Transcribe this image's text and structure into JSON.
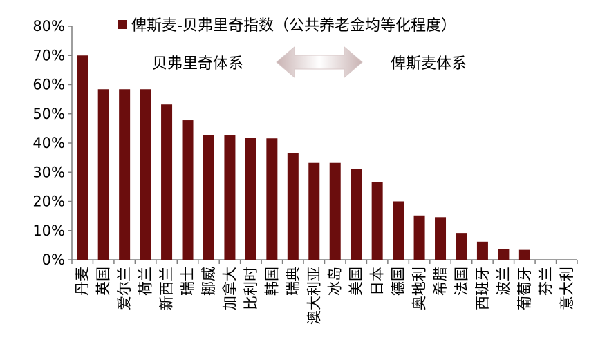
{
  "chart_data": {
    "type": "bar",
    "series": [
      {
        "name": "俾斯麦-贝弗里奇指数（公共养老金均等化程度）",
        "color": "#6b0d0d",
        "values": [
          0.7,
          0.584,
          0.584,
          0.584,
          0.532,
          0.478,
          0.428,
          0.426,
          0.418,
          0.416,
          0.366,
          0.332,
          0.332,
          0.312,
          0.266,
          0.2,
          0.152,
          0.146,
          0.092,
          0.062,
          0.036,
          0.034,
          0.0,
          0.0
        ]
      }
    ],
    "categories": [
      "丹麦",
      "英国",
      "爱尔兰",
      "荷兰",
      "新西兰",
      "瑞士",
      "挪威",
      "加拿大",
      "比利时",
      "韩国",
      "瑞典",
      "澳大利亚",
      "冰岛",
      "美国",
      "日本",
      "德国",
      "奥地利",
      "希腊",
      "法国",
      "西班牙",
      "波兰",
      "葡萄牙",
      "芬兰",
      "意大利"
    ],
    "ylim": [
      0,
      0.8
    ],
    "yticks": [
      "0%",
      "10%",
      "20%",
      "30%",
      "40%",
      "50%",
      "60%",
      "70%",
      "80%"
    ],
    "legend_position": "top",
    "grid": false,
    "annotations": {
      "left_label": "贝弗里奇体系",
      "right_label": "俾斯麦体系",
      "arrow": "double-headed"
    }
  }
}
